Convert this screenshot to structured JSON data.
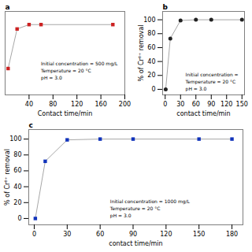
{
  "chart_data": [
    {
      "type": "line",
      "title": "a",
      "x": [
        5,
        20,
        40,
        60,
        180
      ],
      "values": [
        88,
        97,
        98,
        98,
        98
      ],
      "color": "#cc2222",
      "marker": "square",
      "xlabel": "Contact time/min",
      "xlim": [
        0,
        200
      ],
      "ylim": [
        82,
        101
      ],
      "xticks": [
        40,
        80,
        120,
        160,
        200
      ],
      "yticks": [],
      "tick_labels": "x",
      "grid": false,
      "annotation": "Initial concentration = 500 mg/L\nTemperature = 20 °C\npH = 3.0"
    },
    {
      "type": "line",
      "title": "b",
      "x": [
        1,
        10,
        30,
        60,
        90,
        150
      ],
      "values": [
        0,
        73,
        99,
        100,
        100,
        100
      ],
      "color": "#222222",
      "marker": "circle",
      "xlabel": "contact time/min",
      "ylabel": "% of Cr⁶⁺ removal",
      "xlim": [
        -5,
        155
      ],
      "ylim": [
        -8,
        112
      ],
      "xticks": [
        0,
        30,
        60,
        90,
        120,
        150
      ],
      "yticks": [
        0,
        20,
        40,
        60,
        80,
        100
      ],
      "grid": false,
      "annotation": "Initial concentration =\nTemperature = 20 °C\npH = 3.0"
    },
    {
      "type": "line",
      "title": "c",
      "x": [
        1,
        10,
        30,
        60,
        90,
        150,
        180
      ],
      "values": [
        0,
        72,
        99,
        100,
        100,
        100,
        100
      ],
      "color": "#1133bb",
      "marker": "square",
      "xlabel": "contact time/min",
      "ylabel": "% of Cr⁶⁺ removal",
      "xlim": [
        -5,
        190
      ],
      "ylim": [
        -8,
        112
      ],
      "xticks": [
        0,
        30,
        60,
        90,
        120,
        150,
        180
      ],
      "yticks": [
        0,
        20,
        40,
        60,
        80,
        100
      ],
      "grid": false,
      "annotation": "Initial concentration = 1000 mg/L\nTemperature = 20 °C\npH = 3.0"
    }
  ]
}
